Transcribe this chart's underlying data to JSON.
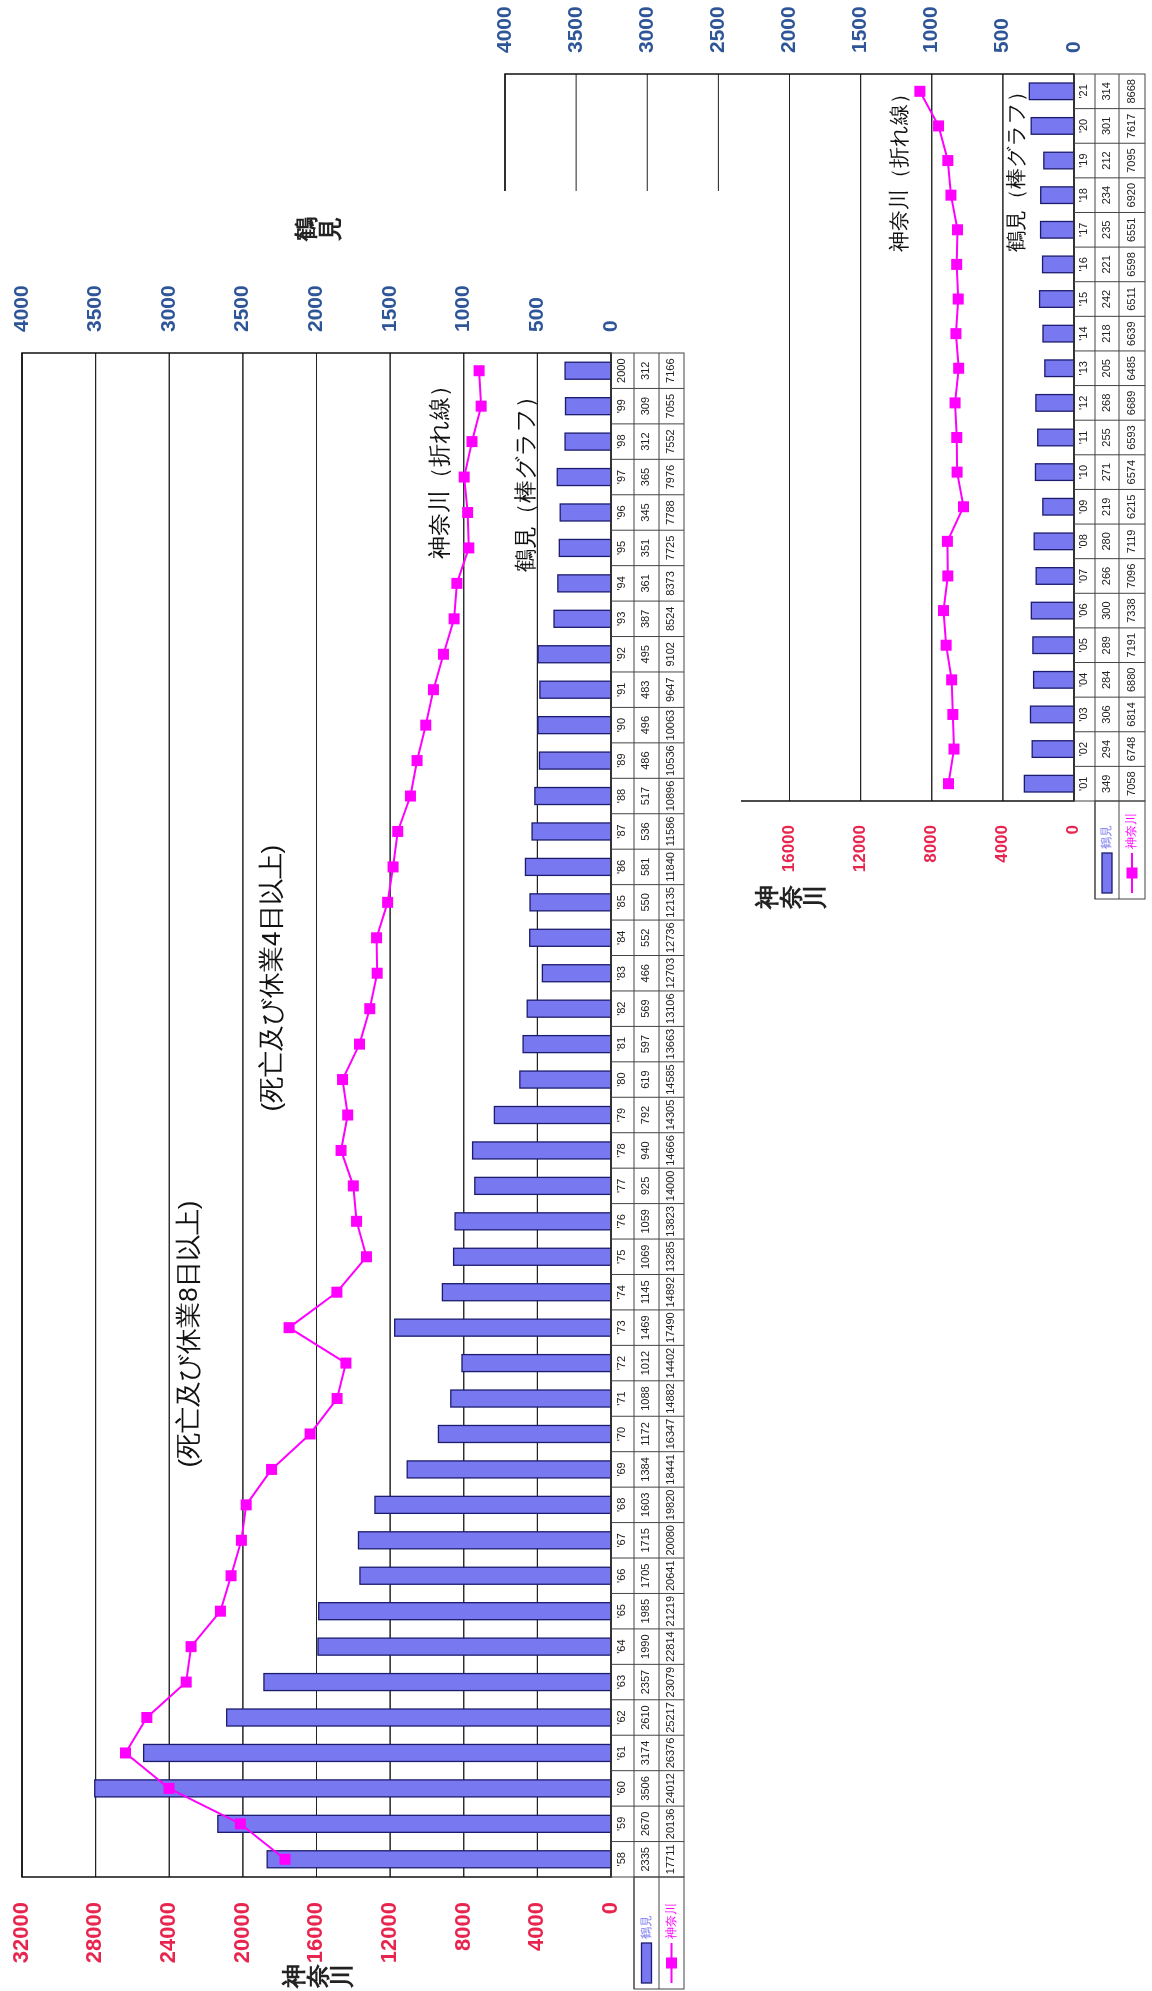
{
  "chart_data": [
    {
      "type": "bar",
      "orientation": "horizontal",
      "categories": [
        "2000",
        "'99",
        "'98",
        "'97",
        "'96",
        "'95",
        "'94",
        "'93",
        "'92",
        "'91",
        "'90",
        "'89",
        "'88",
        "'87",
        "'86",
        "'85",
        "'84",
        "'83",
        "'82",
        "'81",
        "'80",
        "'79",
        "'78",
        "'77",
        "'76",
        "'75",
        "'74",
        "'73",
        "'72",
        "'71",
        "'70",
        "'69",
        "'68",
        "'67",
        "'66",
        "'65",
        "'64",
        "'63",
        "'62",
        "'61",
        "'60",
        "'59",
        "'58"
      ],
      "series": [
        {
          "name": "鶴見",
          "axis": "x2",
          "color": "#7878f0",
          "values": [
            312,
            309,
            312,
            365,
            345,
            351,
            361,
            387,
            495,
            483,
            496,
            486,
            517,
            536,
            581,
            550,
            552,
            466,
            569,
            597,
            619,
            792,
            940,
            925,
            1059,
            1069,
            1145,
            1469,
            1012,
            1088,
            1172,
            1384,
            1603,
            1715,
            1705,
            1985,
            1990,
            2357,
            2610,
            3174,
            3506,
            2670,
            2335
          ]
        },
        {
          "name": "神奈川",
          "type": "line",
          "color": "#ff00ff",
          "values": [
            7166,
            7055,
            7552,
            7976,
            7788,
            7725,
            8373,
            8524,
            9102,
            9647,
            10063,
            10536,
            10896,
            11586,
            11840,
            12135,
            12736,
            12703,
            13106,
            13663,
            14585,
            14305,
            14666,
            14000,
            13823,
            13285,
            14892,
            17490,
            14402,
            14882,
            16347,
            18441,
            19820,
            20080,
            20641,
            21219,
            22814,
            23079,
            25217,
            26376,
            24012,
            20136,
            17711
          ]
        }
      ],
      "xlabel": "神奈川",
      "x2label": "鶴見",
      "xlim": [
        32000,
        0
      ],
      "xticks": [
        0,
        4000,
        8000,
        12000,
        16000,
        20000,
        24000,
        28000,
        32000
      ],
      "x2lim": [
        4000,
        0
      ],
      "x2ticks": [
        0,
        500,
        1000,
        1500,
        2000,
        2500,
        3000,
        3500,
        4000
      ],
      "grid": "x",
      "legend": "bottom",
      "marker": "square",
      "data_labels": true,
      "annotations": [
        "(死亡及び休業8日以上)",
        "(死亡及び休業4日以上)",
        "神奈川（折れ線）",
        "鶴見（棒グラフ）"
      ]
    },
    {
      "type": "bar",
      "orientation": "horizontal",
      "categories": [
        "'21",
        "'20",
        "'19",
        "'18",
        "'17",
        "'16",
        "'15",
        "'14",
        "'13",
        "'12",
        "'11",
        "'10",
        "'09",
        "'08",
        "'07",
        "'06",
        "'05",
        "'04",
        "'03",
        "'02",
        "'01"
      ],
      "series": [
        {
          "name": "鶴見",
          "axis": "x2",
          "color": "#7878f0",
          "values": [
            314,
            301,
            212,
            234,
            235,
            221,
            242,
            218,
            205,
            268,
            255,
            271,
            219,
            280,
            266,
            300,
            289,
            284,
            306,
            294,
            349
          ]
        },
        {
          "name": "神奈川",
          "type": "line",
          "color": "#ff00ff",
          "values": [
            8668,
            7617,
            7095,
            6920,
            6551,
            6598,
            6511,
            6639,
            6485,
            6689,
            6593,
            6574,
            6215,
            7119,
            7096,
            7338,
            7191,
            6880,
            6814,
            6748,
            7058
          ]
        }
      ],
      "xlabel": "神奈川",
      "xlim": [
        32000,
        0
      ],
      "xticks": [
        0,
        4000,
        8000,
        12000,
        16000
      ],
      "x2lim": [
        4000,
        0
      ],
      "x2ticks": [
        0,
        500,
        1000,
        1500,
        2000,
        2500,
        3000,
        3500,
        4000
      ],
      "grid": "x",
      "legend": "bottom",
      "marker": "square",
      "data_labels": true,
      "annotations": [
        "神奈川（折れ線）",
        "鶴見（棒グラフ）"
      ]
    }
  ]
}
